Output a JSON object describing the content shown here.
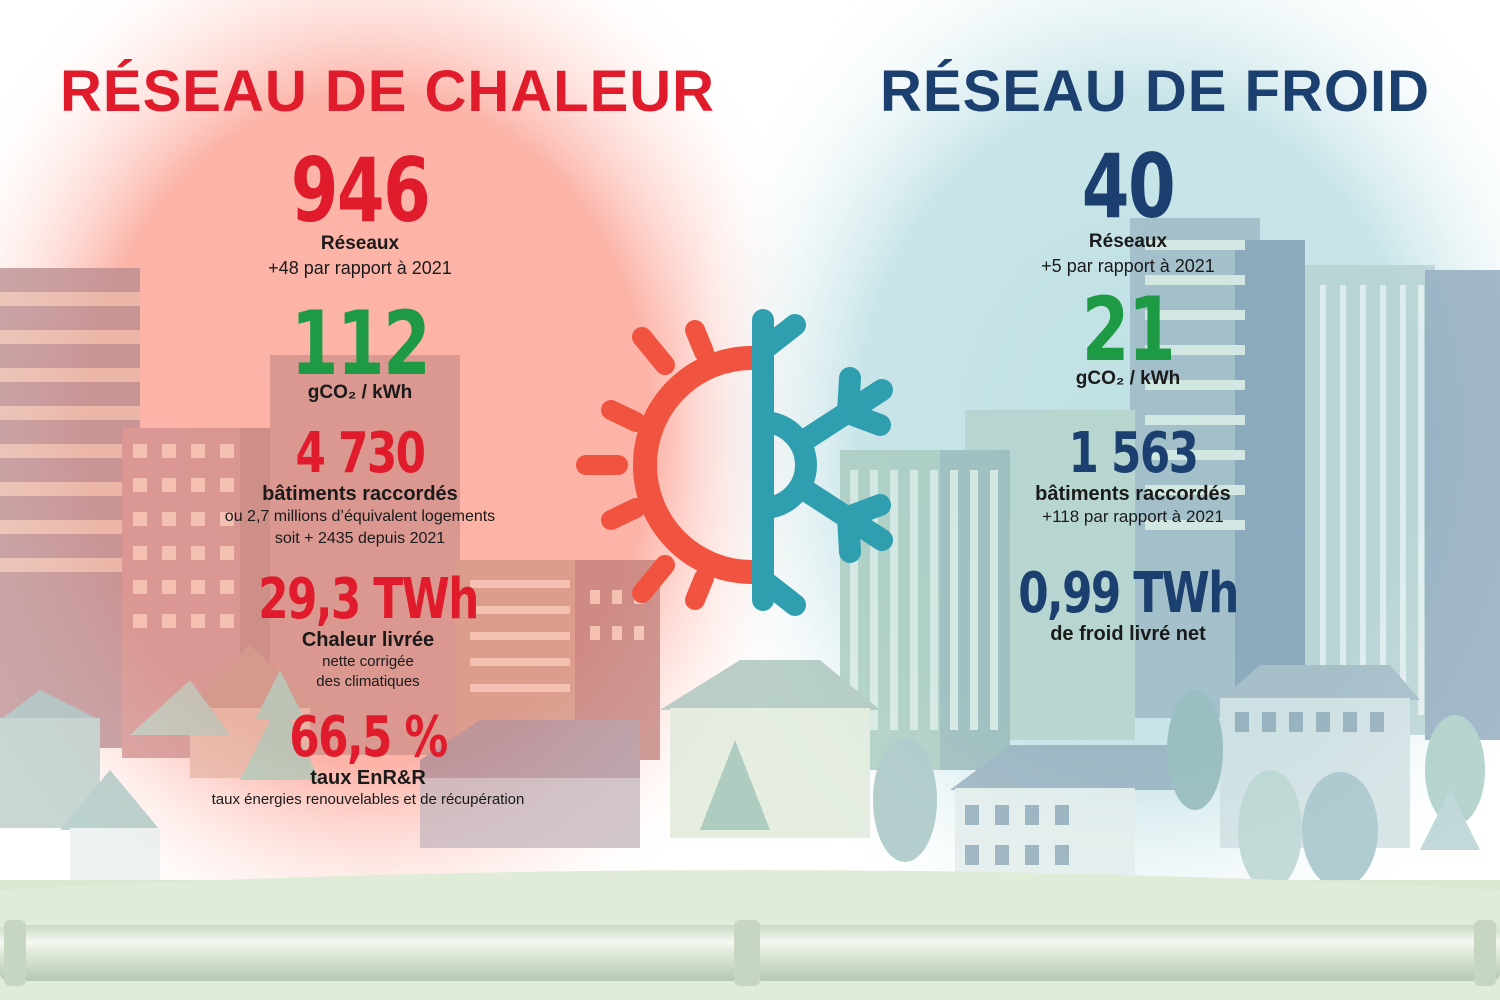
{
  "heat": {
    "title": "RÉSEAU DE CHALEUR",
    "networks": {
      "value": "946",
      "label": "Réseaux",
      "sub": "+48 par rapport à 2021"
    },
    "co2": {
      "value": "112",
      "label": "gCO₂ / kWh"
    },
    "buildings": {
      "value": "4 730",
      "label": "bâtiments raccordés",
      "sub1": "ou 2,7 millions d’équivalent logements",
      "sub2": "soit + 2435 depuis 2021"
    },
    "energy": {
      "value": "29,3 TWh",
      "label": "Chaleur livrée",
      "sub1": "nette corrigée",
      "sub2": "des climatiques"
    },
    "renewable": {
      "value": "66,5 %",
      "label": "taux EnR&R",
      "sub": "taux énergies renouvelables et de récupération"
    }
  },
  "cold": {
    "title": "RÉSEAU DE FROID",
    "networks": {
      "value": "40",
      "label": "Réseaux",
      "sub": "+5 par rapport à 2021"
    },
    "co2": {
      "value": "21",
      "label": "gCO₂ / kWh"
    },
    "buildings": {
      "value": "1 563",
      "label": "bâtiments raccordés",
      "sub": "+118 par rapport à 2021"
    },
    "energy": {
      "value": "0,99 TWh",
      "label": "de froid livré net"
    }
  },
  "icon": {
    "name": "sun-snowflake-icon",
    "sun_color": "#f05440",
    "snow_color": "#2f9fb0"
  },
  "colors": {
    "heat": "#e01b2b",
    "cold": "#1b3f6e",
    "green": "#1e9a44"
  }
}
